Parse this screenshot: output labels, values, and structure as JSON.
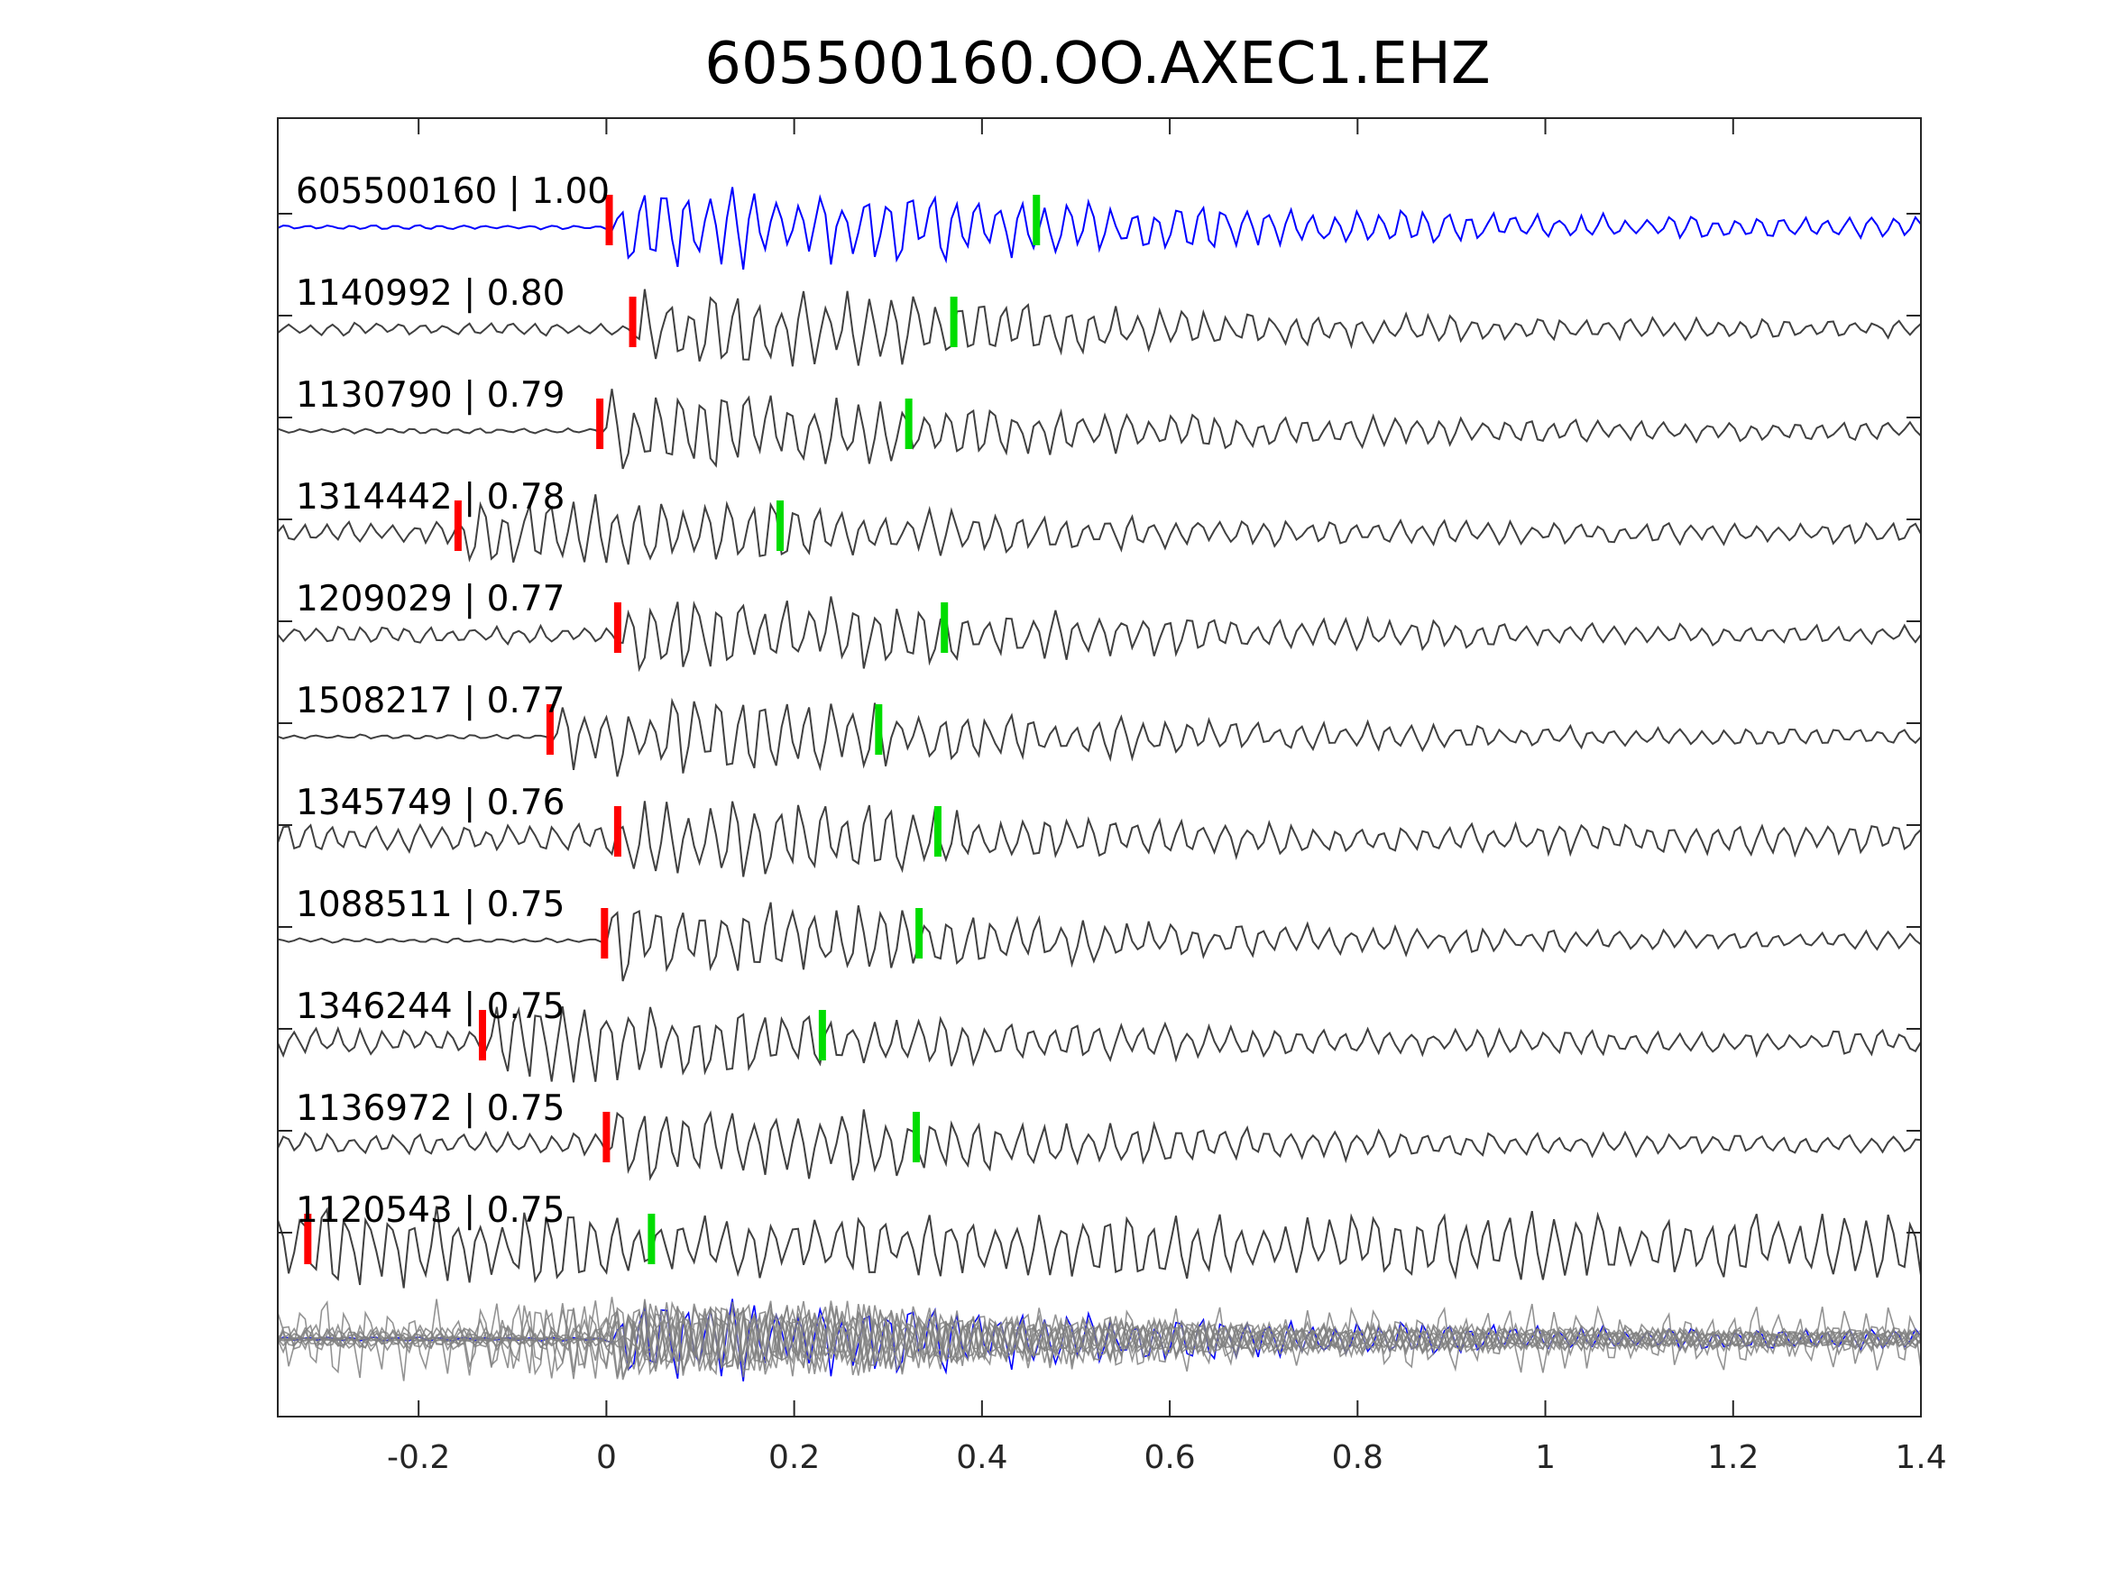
{
  "chart_data": {
    "type": "line",
    "title": "605500160.OO.AXEC1.EHZ",
    "xlabel": "",
    "ylabel": "",
    "xlim": [
      -0.35,
      1.4
    ],
    "xticks": [
      -0.2,
      0,
      0.2,
      0.4,
      0.6,
      0.8,
      1,
      1.2,
      1.4
    ],
    "xtick_labels": [
      "-0.2",
      "0",
      "0.2",
      "0.4",
      "0.6",
      "0.8",
      "1",
      "1.2",
      "1.4"
    ],
    "grid": false,
    "colors": {
      "reference": "#0000ff",
      "trace": "#404040",
      "stack": "#808080",
      "p_pick": "#ff0000",
      "s_pick": "#00dd00"
    },
    "series": [
      {
        "label": "605500160 | 1.00",
        "reference": true,
        "p_pick": 0.003,
        "s_pick": 0.458,
        "pre_amp": 0.05
      },
      {
        "label": "1140992 | 0.80",
        "p_pick": 0.028,
        "s_pick": 0.37,
        "pre_amp": 0.14
      },
      {
        "label": "1130790 | 0.79",
        "p_pick": -0.007,
        "s_pick": 0.322,
        "pre_amp": 0.06
      },
      {
        "label": "1314442 | 0.78",
        "p_pick": -0.158,
        "s_pick": 0.185,
        "pre_amp": 0.25
      },
      {
        "label": "1209029 | 0.77",
        "p_pick": 0.012,
        "s_pick": 0.36,
        "pre_amp": 0.2
      },
      {
        "label": "1508217 | 0.77",
        "p_pick": -0.06,
        "s_pick": 0.29,
        "pre_amp": 0.05
      },
      {
        "label": "1345749 | 0.76",
        "p_pick": 0.012,
        "s_pick": 0.353,
        "pre_amp": 0.35
      },
      {
        "label": "1088511 | 0.75",
        "p_pick": -0.002,
        "s_pick": 0.333,
        "pre_amp": 0.05
      },
      {
        "label": "1346244 | 0.75",
        "p_pick": -0.132,
        "s_pick": 0.23,
        "pre_amp": 0.3
      },
      {
        "label": "1136972 | 0.75",
        "p_pick": 0.0,
        "s_pick": 0.33,
        "pre_amp": 0.25
      },
      {
        "label": "1120543 | 0.75",
        "p_pick": -0.318,
        "s_pick": 0.048,
        "pre_amp": 0.75
      }
    ]
  }
}
